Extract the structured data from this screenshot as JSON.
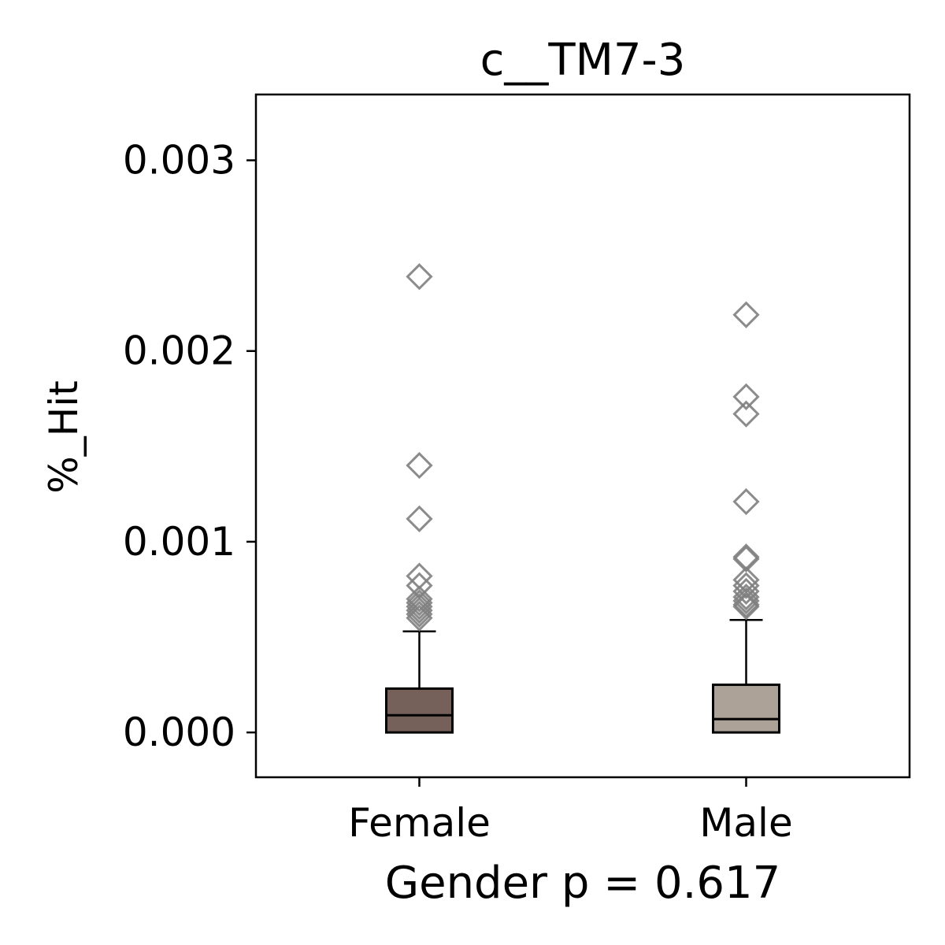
{
  "chart_data": {
    "type": "box",
    "title": "c__TM7-3",
    "xlabel": "Gender p = 0.617",
    "ylabel": "%_Hit",
    "ylim": [
      -0.000235,
      0.003345
    ],
    "yticks": [
      0.0,
      0.001,
      0.002,
      0.003
    ],
    "ytick_labels": [
      "0.000",
      "0.001",
      "0.002",
      "0.003"
    ],
    "grid": false,
    "legend": "none",
    "categories": [
      "Female",
      "Male"
    ],
    "boxes": [
      {
        "name": "Female",
        "color": "#75605a",
        "q1": 0.0,
        "median": 9e-05,
        "q3": 0.00023,
        "whisker_low": 0.0,
        "whisker_high": 0.00053,
        "outliers": [
          0.00239,
          0.0014,
          0.00112,
          0.00082,
          0.00077,
          0.0007,
          0.00068,
          0.00066,
          0.00064,
          0.00062,
          0.0006
        ]
      },
      {
        "name": "Male",
        "color": "#ada298",
        "q1": 0.0,
        "median": 7e-05,
        "q3": 0.00025,
        "whisker_low": 0.0,
        "whisker_high": 0.00059,
        "outliers": [
          0.00219,
          0.00176,
          0.00167,
          0.00121,
          0.00092,
          0.00091,
          0.0008,
          0.00077,
          0.00074,
          0.00071,
          0.00069,
          0.00067,
          0.00066
        ]
      }
    ],
    "outlier_marker": "diamond",
    "outlier_color": "#808080"
  }
}
